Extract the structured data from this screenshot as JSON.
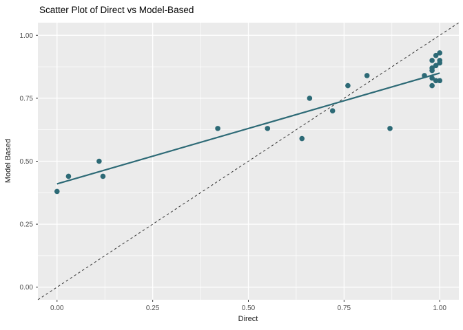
{
  "chart_data": {
    "type": "scatter",
    "title": "Scatter Plot of Direct vs Model-Based",
    "xlabel": "Direct",
    "ylabel": "Model Based",
    "xlim": [
      -0.05,
      1.05
    ],
    "ylim": [
      -0.05,
      1.05
    ],
    "x_ticks": [
      0.0,
      0.25,
      0.5,
      0.75,
      1.0
    ],
    "x_tick_labels": [
      "0.00",
      "0.25",
      "0.50",
      "0.75",
      "1.00"
    ],
    "y_ticks": [
      0.0,
      0.25,
      0.5,
      0.75,
      1.0
    ],
    "y_tick_labels": [
      "0.00",
      "0.25",
      "0.50",
      "0.75",
      "1.00"
    ],
    "x_minor_ticks": [
      0.125,
      0.375,
      0.625,
      0.875
    ],
    "y_minor_ticks": [
      0.125,
      0.375,
      0.625,
      0.875
    ],
    "grid": true,
    "legend": "none",
    "points": [
      [
        0.0,
        0.38
      ],
      [
        0.03,
        0.44
      ],
      [
        0.11,
        0.5
      ],
      [
        0.12,
        0.44
      ],
      [
        0.42,
        0.63
      ],
      [
        0.55,
        0.63
      ],
      [
        0.64,
        0.59
      ],
      [
        0.66,
        0.75
      ],
      [
        0.72,
        0.7
      ],
      [
        0.76,
        0.8
      ],
      [
        0.81,
        0.84
      ],
      [
        0.87,
        0.63
      ],
      [
        0.96,
        0.84
      ],
      [
        0.98,
        0.8
      ],
      [
        0.98,
        0.83
      ],
      [
        0.99,
        0.82
      ],
      [
        1.0,
        0.82
      ],
      [
        0.98,
        0.86
      ],
      [
        0.98,
        0.87
      ],
      [
        0.99,
        0.88
      ],
      [
        1.0,
        0.89
      ],
      [
        0.98,
        0.9
      ],
      [
        1.0,
        0.9
      ],
      [
        0.99,
        0.92
      ],
      [
        1.0,
        0.93
      ]
    ],
    "trend_line": {
      "x": [
        0.0,
        1.0
      ],
      "y": [
        0.41,
        0.85
      ],
      "style": "solid"
    },
    "identity_line": {
      "x": [
        -0.05,
        1.05
      ],
      "y": [
        -0.05,
        1.05
      ],
      "style": "dashed"
    },
    "colors": {
      "point": "#2d6a76",
      "trend": "#2d6a76",
      "identity": "#333333",
      "panel_bg": "#ebebeb",
      "grid": "#ffffff",
      "tick_text": "#4d4d4d",
      "tick_mark": "#333333",
      "axis_title": "#1a1a1a",
      "title_text": "#000000"
    }
  }
}
